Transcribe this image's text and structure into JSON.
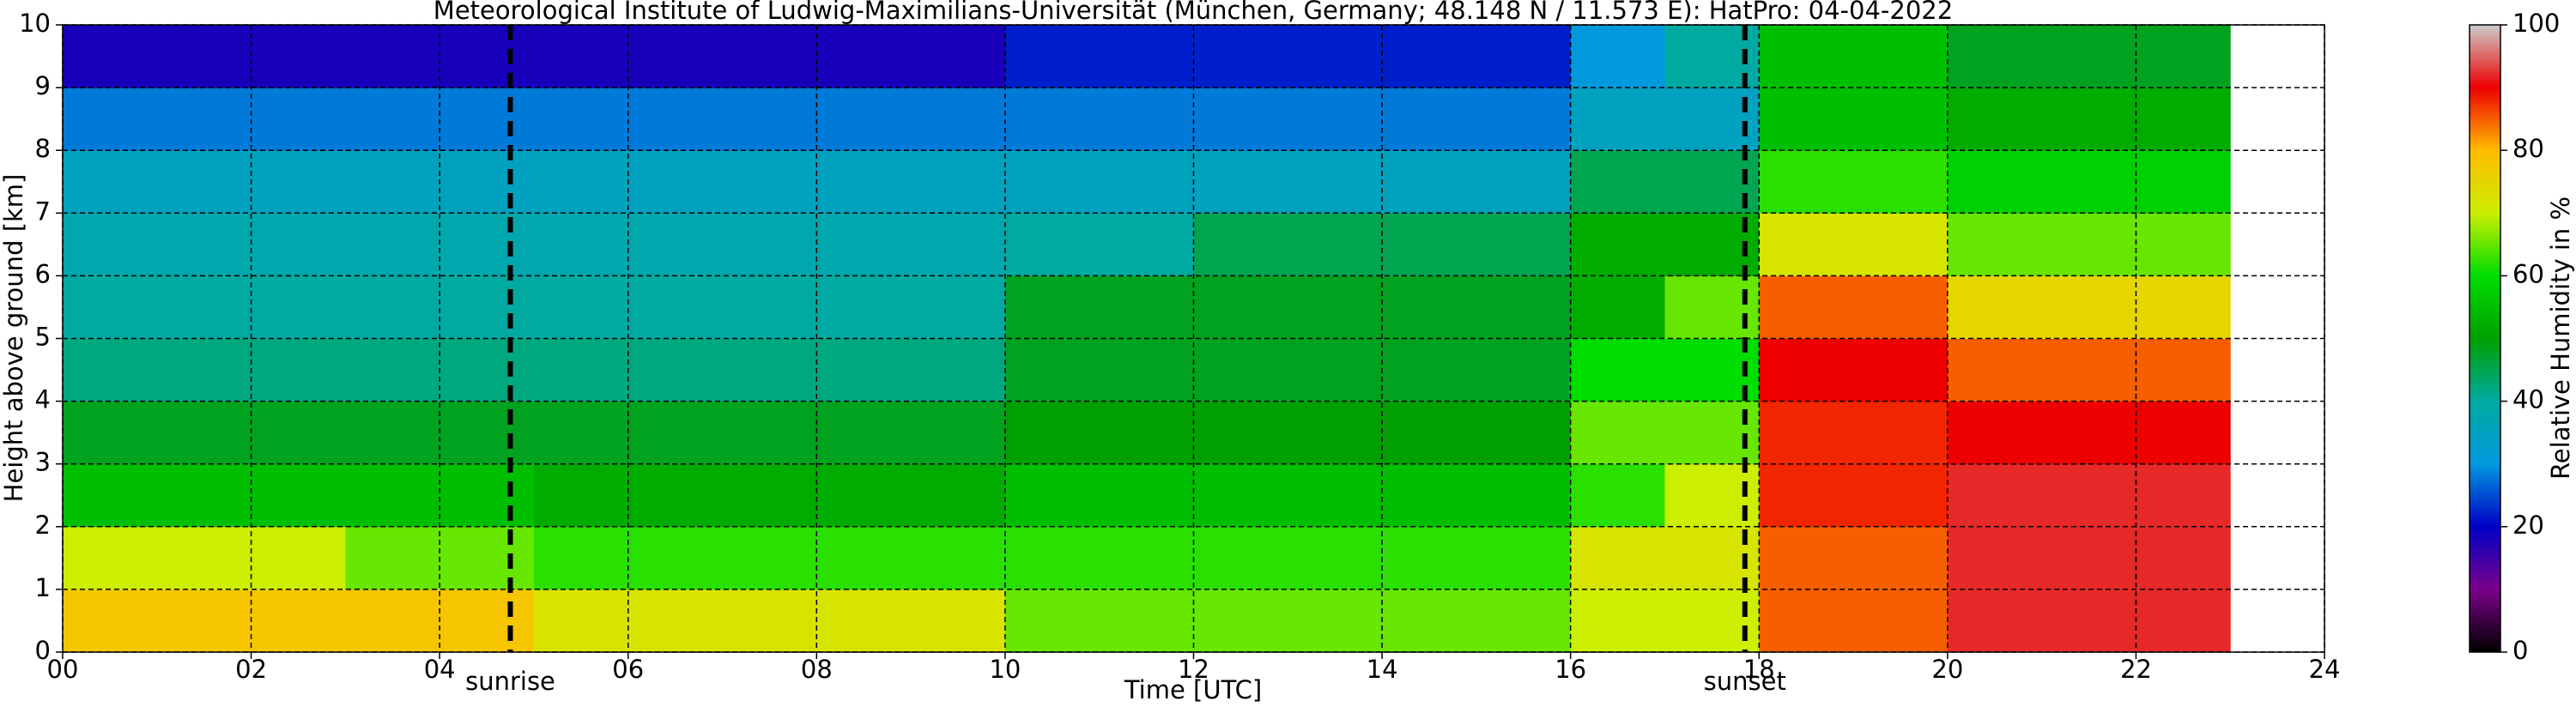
{
  "chart_data": {
    "type": "heatmap",
    "title": "Meteorological Institute of Ludwig-Maximilians-Universität (München, Germany; 48.148 N / 11.573 E):    HatPro: 04-04-2022",
    "xlabel": "Time [UTC]",
    "ylabel": "Height above ground [km]",
    "colorbar_label": "Relative Humidity in %",
    "x_edges": [
      0,
      1,
      2,
      3,
      4,
      5,
      6,
      7,
      8,
      9,
      10,
      11,
      12,
      13,
      14,
      15,
      16,
      17,
      18,
      19,
      20,
      21,
      22,
      23
    ],
    "y_edges": [
      0,
      1,
      2,
      3,
      4,
      5,
      6,
      7,
      8,
      9,
      10
    ],
    "z": [
      [
        78,
        78,
        78,
        78,
        78,
        72,
        72,
        72,
        72,
        72,
        65,
        65,
        65,
        65,
        65,
        65,
        70,
        70,
        85,
        85,
        92,
        92,
        92
      ],
      [
        70,
        70,
        70,
        65,
        65,
        62,
        62,
        62,
        62,
        62,
        62,
        62,
        62,
        62,
        62,
        62,
        72,
        72,
        85,
        85,
        92,
        92,
        92
      ],
      [
        55,
        55,
        55,
        55,
        55,
        52,
        52,
        52,
        52,
        52,
        55,
        55,
        55,
        55,
        55,
        55,
        62,
        70,
        88,
        88,
        92,
        92,
        92
      ],
      [
        48,
        48,
        48,
        48,
        48,
        48,
        48,
        48,
        48,
        48,
        50,
        50,
        50,
        50,
        50,
        50,
        65,
        65,
        88,
        88,
        90,
        90,
        90
      ],
      [
        42,
        42,
        42,
        42,
        42,
        42,
        42,
        42,
        42,
        42,
        48,
        48,
        48,
        48,
        48,
        48,
        60,
        60,
        90,
        90,
        85,
        85,
        85
      ],
      [
        40,
        40,
        40,
        40,
        40,
        40,
        40,
        40,
        40,
        40,
        48,
        48,
        48,
        48,
        48,
        48,
        52,
        65,
        85,
        85,
        75,
        75,
        75
      ],
      [
        38,
        38,
        38,
        38,
        38,
        38,
        38,
        38,
        38,
        38,
        40,
        40,
        45,
        45,
        45,
        45,
        52,
        52,
        72,
        72,
        65,
        65,
        65
      ],
      [
        35,
        35,
        35,
        35,
        35,
        35,
        35,
        35,
        35,
        35,
        35,
        35,
        35,
        35,
        35,
        35,
        45,
        45,
        62,
        62,
        58,
        58,
        58
      ],
      [
        28,
        28,
        28,
        28,
        28,
        28,
        28,
        28,
        28,
        28,
        28,
        28,
        28,
        28,
        28,
        28,
        35,
        35,
        55,
        55,
        52,
        52,
        52
      ],
      [
        18,
        18,
        18,
        18,
        18,
        18,
        18,
        18,
        18,
        18,
        22,
        22,
        22,
        22,
        22,
        22,
        30,
        40,
        55,
        55,
        48,
        48,
        48
      ]
    ],
    "colormap": [
      "#000000",
      "#7a0088",
      "#0000c8",
      "#0099dd",
      "#00aaa0",
      "#00a000",
      "#00dd00",
      "#ccee00",
      "#ffbb00",
      "#ee0000",
      "#cccccc"
    ],
    "clim": [
      0,
      100
    ],
    "cticks": [
      0,
      20,
      40,
      60,
      80,
      100
    ],
    "xlim": [
      0,
      24
    ],
    "xticks": [
      {
        "value": 0,
        "label": "00"
      },
      {
        "value": 2,
        "label": "02"
      },
      {
        "value": 4,
        "label": "04"
      },
      {
        "value": 6,
        "label": "06"
      },
      {
        "value": 8,
        "label": "08"
      },
      {
        "value": 10,
        "label": "10"
      },
      {
        "value": 12,
        "label": "12"
      },
      {
        "value": 14,
        "label": "14"
      },
      {
        "value": 16,
        "label": "16"
      },
      {
        "value": 18,
        "label": "18"
      },
      {
        "value": 20,
        "label": "20"
      },
      {
        "value": 22,
        "label": "22"
      },
      {
        "value": 24,
        "label": "24"
      }
    ],
    "ylim": [
      0,
      10
    ],
    "yticks": [
      0,
      1,
      2,
      3,
      4,
      5,
      6,
      7,
      8,
      9,
      10
    ],
    "grid": true,
    "annotations": [
      {
        "x": 4.75,
        "label": "sunrise"
      },
      {
        "x": 17.85,
        "label": "sunset"
      }
    ]
  }
}
